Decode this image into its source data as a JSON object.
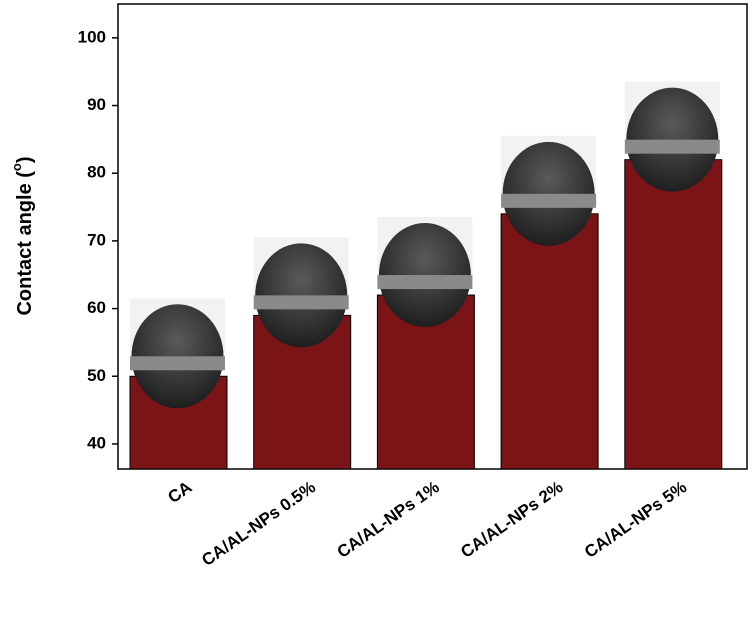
{
  "chart_data": {
    "type": "bar",
    "y_label_parts": [
      "Contact angle (",
      "o",
      ")"
    ],
    "categories": [
      "CA",
      "CA/AL-NPs 0.5%",
      "CA/AL-NPs 1%",
      "CA/AL-NPs 2%",
      "CA/AL-NPs 5%"
    ],
    "values": [
      50,
      59,
      62,
      74,
      82
    ],
    "color": "#7b1416",
    "ylim": [
      36.3,
      105
    ],
    "yticks": [
      40,
      50,
      60,
      70,
      80,
      90,
      100
    ]
  }
}
